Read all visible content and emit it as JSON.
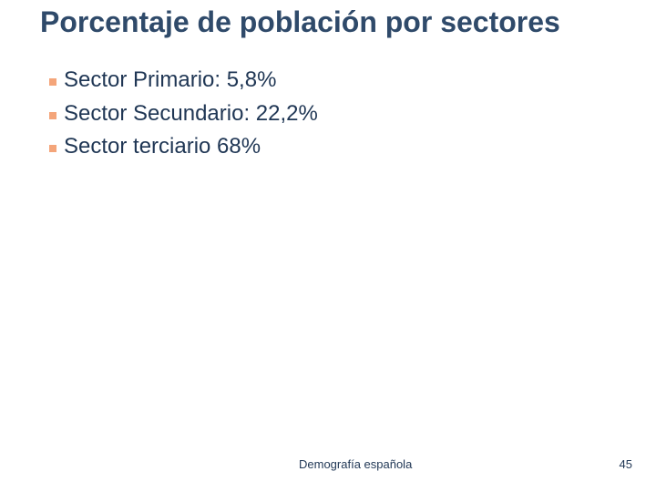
{
  "slide": {
    "title": "Porcentaje de población por sectores",
    "bullets": [
      "Sector Primario: 5,8%",
      "Sector Secundario: 22,2%",
      "Sector terciario 68%"
    ],
    "footer": {
      "text": "Demografía española",
      "page_number": "45"
    }
  }
}
